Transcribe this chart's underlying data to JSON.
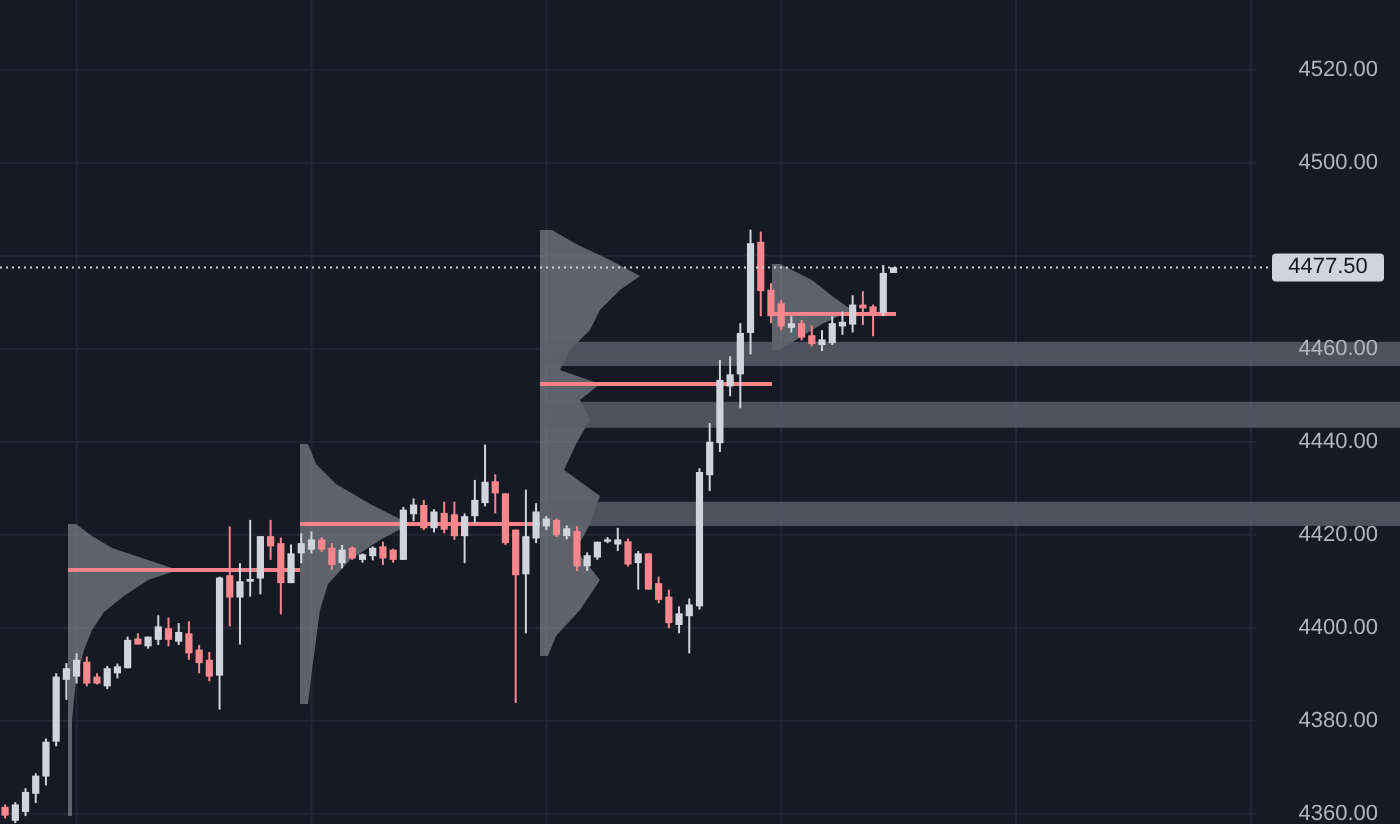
{
  "chart_data": {
    "type": "candlestick",
    "categories": [
      null,
      null,
      null,
      null,
      null,
      null,
      null,
      null,
      null,
      null,
      null,
      null,
      null,
      null,
      null,
      null,
      null,
      null,
      null,
      null,
      null,
      null,
      null,
      null,
      null,
      null,
      null,
      null,
      null,
      null,
      null,
      null,
      null,
      null,
      null,
      null,
      null,
      null,
      null,
      null,
      null,
      null,
      null,
      null,
      null,
      null,
      null,
      null,
      null,
      null,
      null,
      null,
      null,
      null,
      null,
      null,
      null,
      null,
      null,
      null,
      null,
      null,
      null,
      null,
      null,
      null,
      null,
      null,
      null,
      null,
      null,
      null,
      null,
      null,
      null,
      null,
      null,
      null,
      null,
      null,
      null,
      null,
      null,
      null,
      null,
      null,
      null,
      null,
      null,
      null,
      null,
      null,
      null,
      null,
      null,
      null,
      null,
      null,
      null,
      null,
      null,
      null,
      null,
      null,
      null,
      null,
      null,
      null,
      null,
      null,
      null,
      null,
      null,
      null,
      null,
      null,
      null,
      null,
      null,
      null,
      null,
      null,
      null
    ],
    "ohlc": [
      [
        4361.5,
        4362,
        4359,
        4359.6
      ],
      [
        4358.5,
        4362.5,
        4358,
        4362
      ],
      [
        4360.4,
        4365.5,
        4359.5,
        4364.7
      ],
      [
        4364.3,
        4368.7,
        4362.3,
        4368.2
      ],
      [
        4368,
        4376.2,
        4366.1,
        4375.5
      ],
      [
        4375.5,
        4390.2,
        4374.5,
        4389.5
      ],
      [
        4388.8,
        4392.4,
        4384.5,
        4391.3
      ],
      [
        4389.5,
        4394.5,
        4388,
        4393.1
      ],
      [
        4392.7,
        4393.8,
        4387.4,
        4388
      ],
      [
        4389.5,
        4390.2,
        4387.8,
        4388
      ],
      [
        4387.4,
        4391.8,
        4386.8,
        4391.3
      ],
      [
        4390.2,
        4392.3,
        4389.1,
        4391.7
      ],
      [
        4391.3,
        4398.1,
        4391.3,
        4397.4
      ],
      [
        4397.7,
        4398.8,
        4396.4,
        4396.4
      ],
      [
        4396,
        4398.1,
        4395.5,
        4398.1
      ],
      [
        4397.4,
        4402.7,
        4396.3,
        4400.3
      ],
      [
        4399.9,
        4402.2,
        4396,
        4397.4
      ],
      [
        4397,
        4401,
        4396.3,
        4399.1
      ],
      [
        4398.8,
        4401.4,
        4393.1,
        4394.5
      ],
      [
        4395.3,
        4396.3,
        4390.2,
        4392.4
      ],
      [
        4393.1,
        4394.8,
        4388.5,
        4389.5
      ],
      [
        4389.7,
        4411,
        4382.4,
        4410.8
      ],
      [
        4411.3,
        4421.8,
        4400.3,
        4406.5
      ],
      [
        4406.5,
        4413.9,
        4396.4,
        4410
      ],
      [
        4409.9,
        4423.2,
        4406.7,
        4410.5
      ],
      [
        4410.6,
        4419.7,
        4407.2,
        4419.7
      ],
      [
        4419.7,
        4423.2,
        4414.6,
        4417.5
      ],
      [
        4418.2,
        4419.4,
        4402.9,
        4409.6
      ],
      [
        4409.6,
        4417.9,
        4409.6,
        4416
      ],
      [
        4416,
        4420.3,
        4413.9,
        4418.2
      ],
      [
        4416.8,
        4420.7,
        4416,
        4419
      ],
      [
        4419,
        4419.5,
        4416.3,
        4416.8
      ],
      [
        4417.2,
        4418.2,
        4412.5,
        4413.5
      ],
      [
        4413.9,
        4417.8,
        4412.8,
        4416.8
      ],
      [
        4417.2,
        4417.5,
        4414.6,
        4414.9
      ],
      [
        4414.6,
        4416,
        4414,
        4415.8
      ],
      [
        4415.4,
        4417.5,
        4414.5,
        4417.2
      ],
      [
        4417.5,
        4418.5,
        4413.5,
        4414.9
      ],
      [
        4416.8,
        4417,
        4414,
        4414.6
      ],
      [
        4414.6,
        4426,
        4414.6,
        4425.4
      ],
      [
        4424.4,
        4427.8,
        4422.9,
        4426.5
      ],
      [
        4426.4,
        4427.5,
        4421,
        4421.4
      ],
      [
        4421.4,
        4425.5,
        4420.5,
        4425
      ],
      [
        4424.7,
        4427.1,
        4420.3,
        4421.1
      ],
      [
        4424.4,
        4427.1,
        4418.9,
        4419.7
      ],
      [
        4419.7,
        4424.6,
        4413.9,
        4424
      ],
      [
        4424,
        4431.8,
        4422.5,
        4427.5
      ],
      [
        4426.8,
        4439.4,
        4426.1,
        4431.4
      ],
      [
        4431.5,
        4433,
        4424.6,
        4428.9
      ],
      [
        4428.9,
        4428.9,
        4417.8,
        4418.2
      ],
      [
        4421.1,
        4421.1,
        4383.8,
        4411.3
      ],
      [
        4411.5,
        4429.7,
        4398.8,
        4419.7
      ],
      [
        4419.2,
        4426.8,
        4418.2,
        4425
      ],
      [
        4421.8,
        4424,
        4421,
        4423.5
      ],
      [
        4423.2,
        4423.5,
        4419.5,
        4419.9
      ],
      [
        4419.7,
        4422,
        4419,
        4421.4
      ],
      [
        4420.8,
        4421.8,
        4412.2,
        4413.2
      ],
      [
        4413.2,
        4416.2,
        4412.2,
        4415.6
      ],
      [
        4415.1,
        4418.5,
        4414.6,
        4418.5
      ],
      [
        4418.5,
        4419.5,
        4418.2,
        4419
      ],
      [
        4417.9,
        4421.5,
        4416.5,
        4419
      ],
      [
        4418.6,
        4419.2,
        4413.2,
        4413.6
      ],
      [
        4413.9,
        4416.5,
        4408.2,
        4416
      ],
      [
        4416,
        4416,
        4408.2,
        4408.2
      ],
      [
        4409.6,
        4411,
        4405.3,
        4406
      ],
      [
        4406.7,
        4408.2,
        4399.9,
        4401
      ],
      [
        4400.6,
        4404.6,
        4398.8,
        4403.1
      ],
      [
        4402.5,
        4406.3,
        4394.5,
        4405
      ],
      [
        4404.6,
        4434.3,
        4403.9,
        4433.5
      ],
      [
        4432.8,
        4444,
        4429.4,
        4440
      ],
      [
        4439.7,
        4457.6,
        4437.8,
        4453.3
      ],
      [
        4451.9,
        4458.4,
        4449.8,
        4454.5
      ],
      [
        4454.5,
        4465.5,
        4447.2,
        4463.4
      ],
      [
        4463.4,
        4485.6,
        4458.8,
        4482.7
      ],
      [
        4483,
        4485.2,
        4467,
        4472.4
      ],
      [
        4472.7,
        4474.1,
        4465.5,
        4467
      ],
      [
        4469.8,
        4470.5,
        4464,
        4464.8
      ],
      [
        4464.5,
        4467,
        4463.5,
        4465.5
      ],
      [
        4465.5,
        4466.2,
        4461.8,
        4462.4
      ],
      [
        4462.9,
        4465,
        4460.5,
        4461
      ],
      [
        4460.8,
        4464,
        4459.5,
        4462
      ],
      [
        4461.2,
        4467,
        4460.8,
        4465.5
      ],
      [
        4464.8,
        4468,
        4463,
        4465.8
      ],
      [
        4465.2,
        4471.5,
        4463.5,
        4469.5
      ],
      [
        4469.5,
        4472.4,
        4465.1,
        4468.7
      ],
      [
        4469.1,
        4469.5,
        4462.7,
        4467.7
      ],
      [
        4467.7,
        4478,
        4467,
        4476.3
      ],
      [
        4476.3,
        4477.5,
        4476.3,
        4477.5
      ],
      null,
      null,
      null,
      null,
      null,
      null,
      null,
      null,
      null,
      null,
      null,
      null,
      null,
      null,
      null,
      null,
      null,
      null,
      null,
      null,
      null,
      null,
      null,
      null,
      null,
      null,
      null,
      null,
      null,
      null,
      null,
      null,
      null,
      null,
      null
    ],
    "ylim": [
      4357.8,
      4535
    ],
    "yticks": [
      {
        "value": 4360,
        "label": "4360.00"
      },
      {
        "value": 4380,
        "label": "4380.00"
      },
      {
        "value": 4400,
        "label": "4400.00"
      },
      {
        "value": 4420,
        "label": "4420.00"
      },
      {
        "value": 4440,
        "label": "4440.00"
      },
      {
        "value": 4460,
        "label": "4460.00"
      },
      {
        "value": 4480,
        "label": null
      },
      {
        "value": 4500,
        "label": "4500.00"
      },
      {
        "value": 4520,
        "label": "4520.00"
      }
    ],
    "grid": true,
    "ref_lines": [
      {
        "axis": "y",
        "value": 4477.5,
        "label": "4477.50",
        "color": "#d1d4dc",
        "line_style": "dotted"
      }
    ],
    "bands": [
      {
        "axis": "y",
        "from": 4456.3,
        "to": 4461.5,
        "color": "#5d606b"
      },
      {
        "axis": "y",
        "from": 4443,
        "to": 4448.6,
        "color": "#5d606b"
      },
      {
        "axis": "y",
        "from": 4421.9,
        "to": 4427.1,
        "color": "#5d606b"
      }
    ]
  }
}
